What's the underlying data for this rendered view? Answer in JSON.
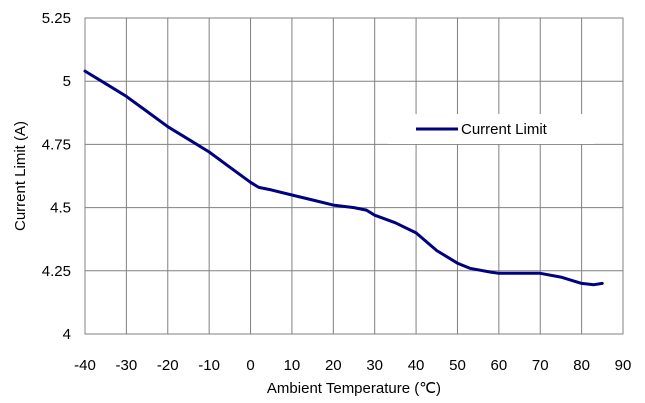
{
  "chart_data": {
    "type": "line",
    "title": "",
    "xlabel": "Ambient Temperature (℃)",
    "ylabel": "Current Limit (A)",
    "xlim": [
      -40,
      90
    ],
    "ylim": [
      4,
      5.25
    ],
    "x_ticks": [
      -40,
      -30,
      -20,
      -10,
      0,
      10,
      20,
      30,
      40,
      50,
      60,
      70,
      80,
      90
    ],
    "x_tick_labels": [
      "-40",
      "-30",
      "-20",
      "-10",
      "0",
      "10",
      "20",
      "30",
      "40",
      "50",
      "60",
      "70",
      "80",
      "90"
    ],
    "y_ticks": [
      4,
      4.25,
      4.5,
      4.75,
      5,
      5.25
    ],
    "y_tick_labels": [
      "4",
      "4.25",
      "4.5",
      "4.75",
      "5",
      "5.25"
    ],
    "grid": true,
    "legend_position": "right",
    "series": [
      {
        "name": "Current Limit",
        "color": "#000080",
        "x": [
          -40,
          -35,
          -30,
          -25,
          -20,
          -15,
          -10,
          -5,
          0,
          2,
          5,
          10,
          15,
          20,
          25,
          28,
          30,
          35,
          40,
          45,
          50,
          53,
          58,
          60,
          65,
          70,
          75,
          80,
          83,
          85
        ],
        "y": [
          5.04,
          4.99,
          4.94,
          4.88,
          4.82,
          4.77,
          4.72,
          4.66,
          4.6,
          4.58,
          4.57,
          4.55,
          4.53,
          4.51,
          4.5,
          4.49,
          4.47,
          4.44,
          4.4,
          4.33,
          4.28,
          4.26,
          4.245,
          4.24,
          4.24,
          4.24,
          4.225,
          4.2,
          4.195,
          4.2
        ]
      }
    ]
  }
}
